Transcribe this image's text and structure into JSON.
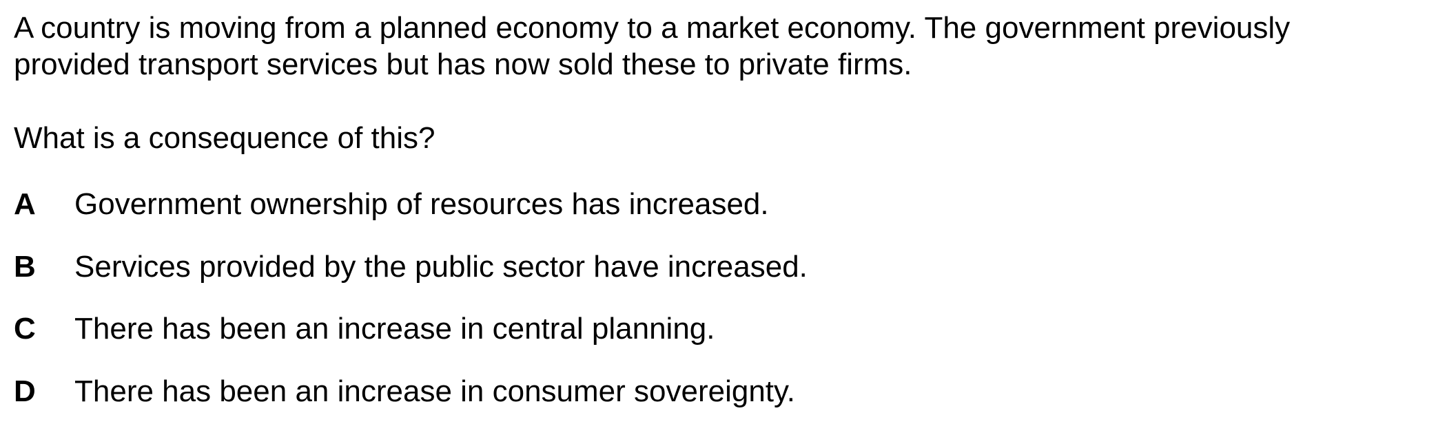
{
  "stem": {
    "line1": "A country is moving from a planned economy to a market economy. The government previously",
    "line2": "provided transport services but has now sold these to private firms."
  },
  "question": "What is a consequence of this?",
  "options": [
    {
      "letter": "A",
      "text": "Government ownership of resources has increased."
    },
    {
      "letter": "B",
      "text": "Services provided by the public sector have increased."
    },
    {
      "letter": "C",
      "text": "There has been an increase in central planning."
    },
    {
      "letter": "D",
      "text": "There has been an increase in consumer sovereignty."
    }
  ]
}
